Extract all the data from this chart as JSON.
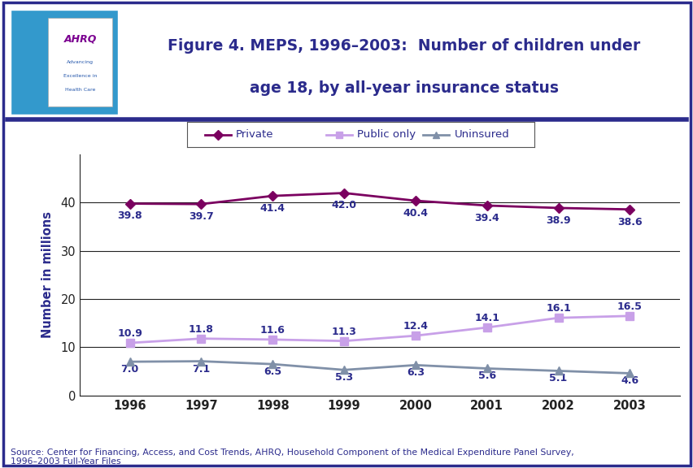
{
  "years": [
    1996,
    1997,
    1998,
    1999,
    2000,
    2001,
    2002,
    2003
  ],
  "private": [
    39.8,
    39.7,
    41.4,
    42.0,
    40.4,
    39.4,
    38.9,
    38.6
  ],
  "public_only": [
    10.9,
    11.8,
    11.6,
    11.3,
    12.4,
    14.1,
    16.1,
    16.5
  ],
  "uninsured": [
    7.0,
    7.1,
    6.5,
    5.3,
    6.3,
    5.6,
    5.1,
    4.6
  ],
  "private_color": "#7B0060",
  "public_color": "#C8A0E8",
  "uninsured_color": "#8090A8",
  "title_line1": "Figure 4. MEPS, 1996–2003:  Number of children under",
  "title_line2": "age 18, by all-year insurance status",
  "ylabel": "Number in millions",
  "source_text": "Source: Center for Financing, Access, and Cost Trends, AHRQ, Household Component of the Medical Expenditure Panel Survey,\n1996–2003 Full-Year Files",
  "ylim": [
    0,
    50
  ],
  "yticks": [
    0,
    10,
    20,
    30,
    40
  ],
  "title_color": "#2B2B8C",
  "border_color": "#2B2B8C",
  "legend_labels": [
    "Private",
    "Public only",
    "Uninsured"
  ],
  "annotation_fontsize": 9.0,
  "logo_bg": "#3399CC",
  "logo_border": "#FFFFFF"
}
